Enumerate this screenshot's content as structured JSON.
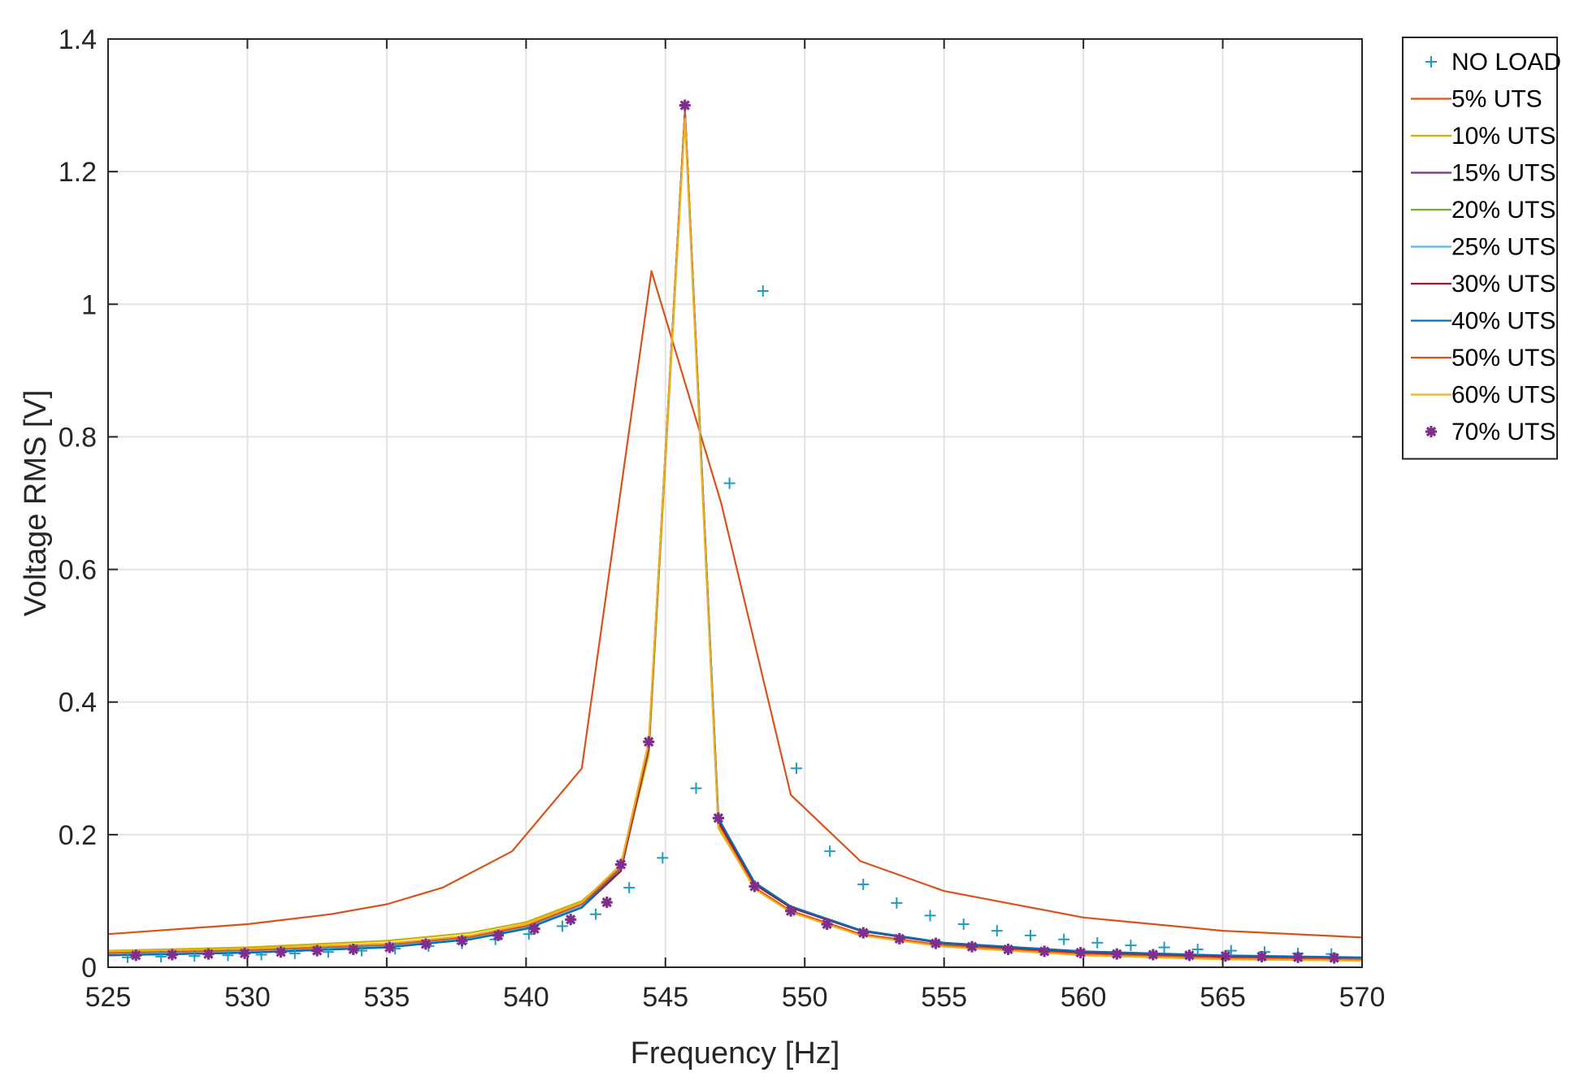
{
  "chart_data": {
    "type": "line",
    "title": "",
    "xlabel": "Frequency [Hz]",
    "ylabel": "Voltage RMS [V]",
    "xlim": [
      525,
      570
    ],
    "ylim": [
      0,
      1.4
    ],
    "xticks": [
      525,
      530,
      535,
      540,
      545,
      550,
      555,
      560,
      565,
      570
    ],
    "yticks": [
      0,
      0.2,
      0.4,
      0.6,
      0.8,
      1,
      1.2,
      1.4
    ],
    "xtick_labels": [
      "525",
      "530",
      "535",
      "540",
      "545",
      "550",
      "555",
      "560",
      "565",
      "570"
    ],
    "ytick_labels": [
      "0",
      "0.2",
      "0.4",
      "0.6",
      "0.8",
      "1",
      "1.2",
      "1.4"
    ],
    "grid": true,
    "legend_position": "outside-top-right",
    "series": [
      {
        "name": "NO LOAD",
        "style": "marker",
        "marker": "+",
        "color": "#1f9bbd",
        "x": [
          525.7,
          526.9,
          528.1,
          529.3,
          530.5,
          531.7,
          532.9,
          534.1,
          535.3,
          536.5,
          537.7,
          538.9,
          540.1,
          541.3,
          542.5,
          543.7,
          544.9,
          546.1,
          547.3,
          548.5,
          549.7,
          550.9,
          552.1,
          553.3,
          554.5,
          555.7,
          556.9,
          558.1,
          559.3,
          560.5,
          561.7,
          562.9,
          564.1,
          565.3,
          566.5,
          567.7,
          568.9
        ],
        "y": [
          0.015,
          0.016,
          0.017,
          0.018,
          0.019,
          0.021,
          0.023,
          0.025,
          0.028,
          0.032,
          0.036,
          0.042,
          0.05,
          0.062,
          0.08,
          0.12,
          0.165,
          0.27,
          0.73,
          1.02,
          0.3,
          0.175,
          0.125,
          0.097,
          0.078,
          0.065,
          0.055,
          0.048,
          0.042,
          0.037,
          0.033,
          0.03,
          0.027,
          0.025,
          0.023,
          0.021,
          0.02
        ]
      },
      {
        "name": "5% UTS",
        "style": "line",
        "color": "#d95319",
        "x": [
          525,
          530,
          533,
          535,
          537,
          539.5,
          542,
          544.5,
          547,
          549.5,
          552,
          555,
          560,
          565,
          570
        ],
        "y": [
          0.05,
          0.065,
          0.08,
          0.095,
          0.12,
          0.175,
          0.3,
          1.05,
          0.7,
          0.26,
          0.16,
          0.115,
          0.075,
          0.055,
          0.045
        ]
      },
      {
        "name": "10% UTS",
        "style": "line",
        "color": "#c8b400",
        "x": [
          525,
          530,
          535,
          538,
          540,
          542,
          543.4,
          544.4,
          545.7,
          546.9,
          548.2,
          549.5,
          552,
          555,
          560,
          565,
          570
        ],
        "y": [
          0.025,
          0.03,
          0.04,
          0.052,
          0.068,
          0.1,
          0.15,
          0.32,
          1.28,
          0.21,
          0.12,
          0.085,
          0.05,
          0.032,
          0.018,
          0.012,
          0.01
        ]
      },
      {
        "name": "15% UTS",
        "style": "line",
        "color": "#7e2f8e",
        "x": [
          525,
          530,
          535,
          538,
          540,
          542,
          543.4,
          544.4,
          545.7,
          546.9,
          548.2,
          549.5,
          552,
          555,
          560,
          565,
          570
        ],
        "y": [
          0.018,
          0.022,
          0.03,
          0.042,
          0.058,
          0.09,
          0.145,
          0.33,
          1.29,
          0.22,
          0.125,
          0.09,
          0.055,
          0.036,
          0.022,
          0.016,
          0.013
        ]
      },
      {
        "name": "20% UTS",
        "style": "line",
        "color": "#77ac30",
        "x": [
          525,
          530,
          535,
          538,
          540,
          542,
          543.4,
          544.4,
          545.7,
          546.9,
          548.2,
          549.5,
          552,
          555,
          560,
          565,
          570
        ],
        "y": [
          0.019,
          0.023,
          0.031,
          0.043,
          0.059,
          0.091,
          0.146,
          0.33,
          1.29,
          0.22,
          0.125,
          0.09,
          0.055,
          0.036,
          0.022,
          0.016,
          0.013
        ]
      },
      {
        "name": "25% UTS",
        "style": "line",
        "color": "#4dbeee",
        "x": [
          525,
          530,
          535,
          538,
          540,
          542,
          543.4,
          544.4,
          545.7,
          546.9,
          548.2,
          549.5,
          552,
          555,
          560,
          565,
          570
        ],
        "y": [
          0.02,
          0.024,
          0.032,
          0.044,
          0.06,
          0.092,
          0.147,
          0.335,
          1.29,
          0.222,
          0.126,
          0.091,
          0.056,
          0.037,
          0.023,
          0.017,
          0.014
        ]
      },
      {
        "name": "30% UTS",
        "style": "line",
        "color": "#a2142f",
        "x": [
          525,
          530,
          535,
          538,
          540,
          542,
          543.4,
          544.4,
          545.7,
          546.9,
          548.2,
          549.5,
          552,
          555,
          560,
          565,
          570
        ],
        "y": [
          0.018,
          0.022,
          0.03,
          0.042,
          0.058,
          0.09,
          0.145,
          0.33,
          1.29,
          0.22,
          0.125,
          0.09,
          0.055,
          0.036,
          0.022,
          0.016,
          0.013
        ]
      },
      {
        "name": "40% UTS",
        "style": "line",
        "color": "#0072bd",
        "x": [
          525,
          530,
          535,
          538,
          540,
          542,
          543.4,
          544.4,
          545.7,
          546.9,
          548.2,
          549.5,
          552,
          555,
          560,
          565,
          570
        ],
        "y": [
          0.018,
          0.022,
          0.03,
          0.042,
          0.058,
          0.09,
          0.15,
          0.335,
          1.29,
          0.225,
          0.128,
          0.092,
          0.056,
          0.037,
          0.024,
          0.018,
          0.015
        ]
      },
      {
        "name": "50% UTS",
        "style": "line",
        "color": "#d95319",
        "x": [
          525,
          530,
          535,
          538,
          540,
          542,
          543.4,
          544.4,
          545.7,
          546.9,
          548.2,
          549.5,
          552,
          555,
          560,
          565,
          570
        ],
        "y": [
          0.022,
          0.026,
          0.034,
          0.046,
          0.062,
          0.095,
          0.15,
          0.335,
          1.29,
          0.215,
          0.12,
          0.085,
          0.05,
          0.033,
          0.02,
          0.014,
          0.012
        ]
      },
      {
        "name": "60% UTS",
        "style": "line",
        "color": "#edb120",
        "x": [
          525,
          530,
          535,
          538,
          540,
          542,
          543.4,
          544.4,
          545.7,
          546.9,
          548.2,
          549.5,
          552,
          555,
          560,
          565,
          570
        ],
        "y": [
          0.024,
          0.028,
          0.036,
          0.048,
          0.065,
          0.098,
          0.155,
          0.34,
          1.28,
          0.212,
          0.118,
          0.083,
          0.048,
          0.031,
          0.018,
          0.012,
          0.01
        ]
      },
      {
        "name": "70% UTS",
        "style": "marker",
        "marker": "*",
        "color": "#7e2f8e",
        "x": [
          526,
          527.3,
          528.6,
          529.9,
          531.2,
          532.5,
          533.8,
          535.1,
          536.4,
          537.7,
          539,
          540.3,
          541.6,
          542.9,
          543.4,
          544.4,
          545.7,
          546.9,
          548.2,
          549.5,
          550.8,
          552.1,
          553.4,
          554.7,
          556,
          557.3,
          558.6,
          559.9,
          561.2,
          562.5,
          563.8,
          565.1,
          566.4,
          567.7,
          569
        ],
        "y": [
          0.018,
          0.019,
          0.02,
          0.021,
          0.023,
          0.025,
          0.027,
          0.03,
          0.035,
          0.04,
          0.048,
          0.058,
          0.072,
          0.098,
          0.155,
          0.34,
          1.3,
          0.225,
          0.122,
          0.085,
          0.065,
          0.052,
          0.043,
          0.036,
          0.031,
          0.027,
          0.024,
          0.022,
          0.02,
          0.019,
          0.018,
          0.017,
          0.016,
          0.015,
          0.014
        ]
      }
    ]
  }
}
